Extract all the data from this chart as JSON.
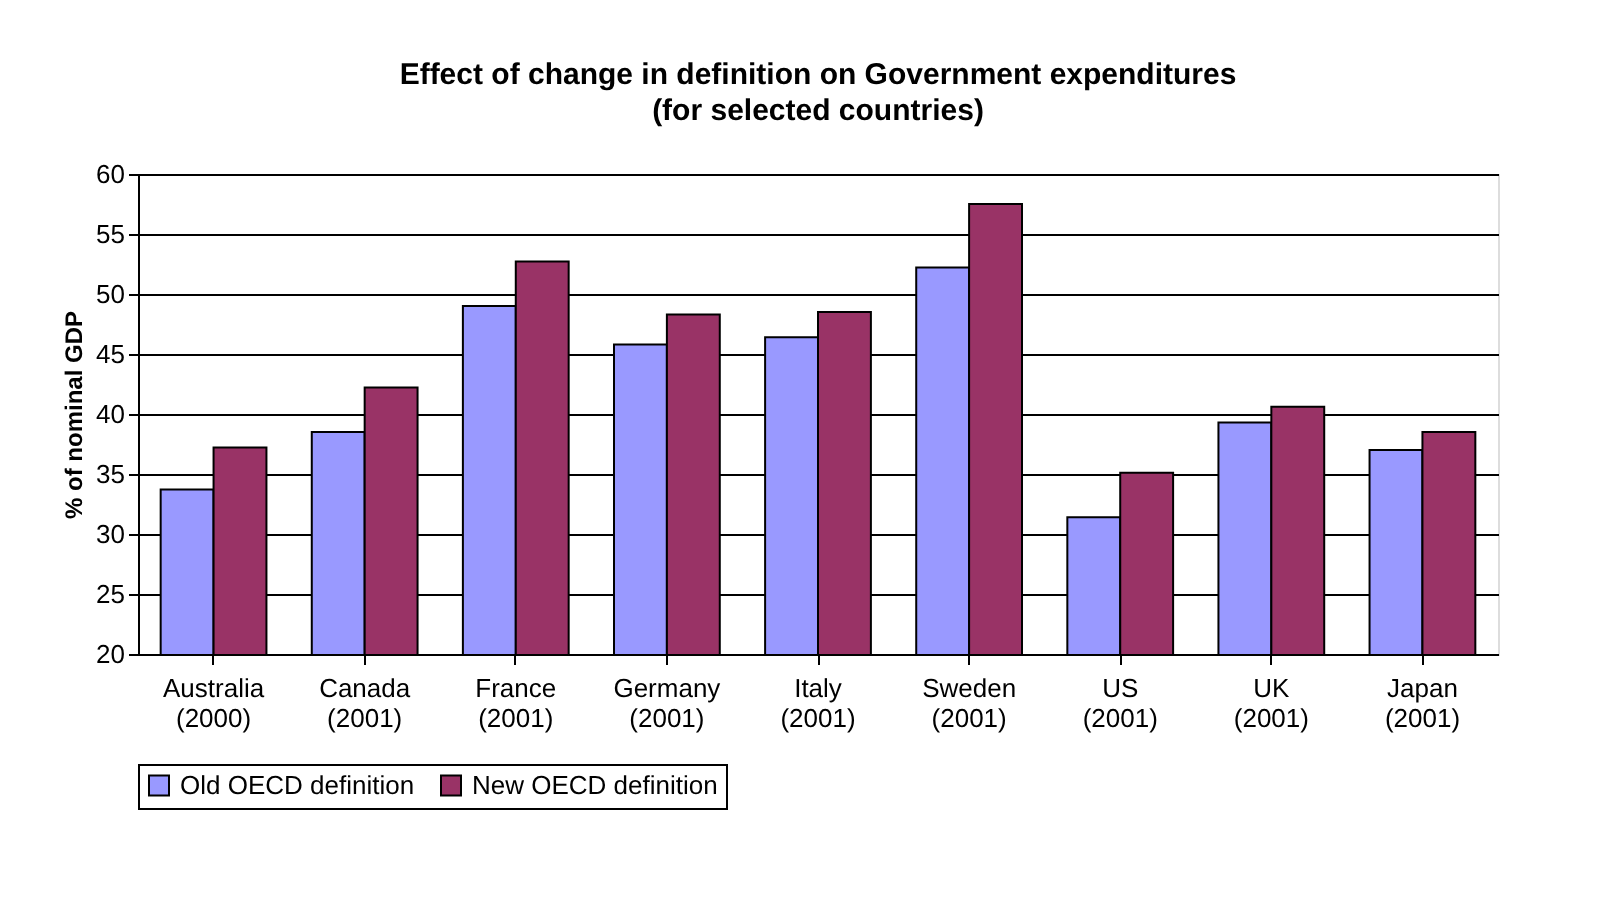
{
  "chart_data": {
    "type": "bar",
    "title": "Effect of change in definition on Government expenditures",
    "subtitle": "(for selected countries)",
    "ylabel": "% of nominal GDP",
    "categories": [
      "Australia (2000)",
      "Canada (2001)",
      "France (2001)",
      "Germany (2001)",
      "Italy (2001)",
      "Sweden (2001)",
      "US (2001)",
      "UK (2001)",
      "Japan (2001)"
    ],
    "series": [
      {
        "name": "Old OECD definition",
        "color": "#9999ff",
        "values": [
          33.7,
          38.5,
          49.0,
          45.8,
          46.4,
          52.2,
          31.4,
          39.3,
          37.0
        ]
      },
      {
        "name": "New OECD definition",
        "color": "#993366",
        "values": [
          37.2,
          42.2,
          52.7,
          48.3,
          48.5,
          57.5,
          35.1,
          40.6,
          38.5
        ]
      }
    ],
    "ylim": [
      20,
      60
    ],
    "yticks": [
      20,
      25,
      30,
      35,
      40,
      45,
      50,
      55,
      60
    ],
    "grid": "y",
    "legend": "bottom"
  }
}
